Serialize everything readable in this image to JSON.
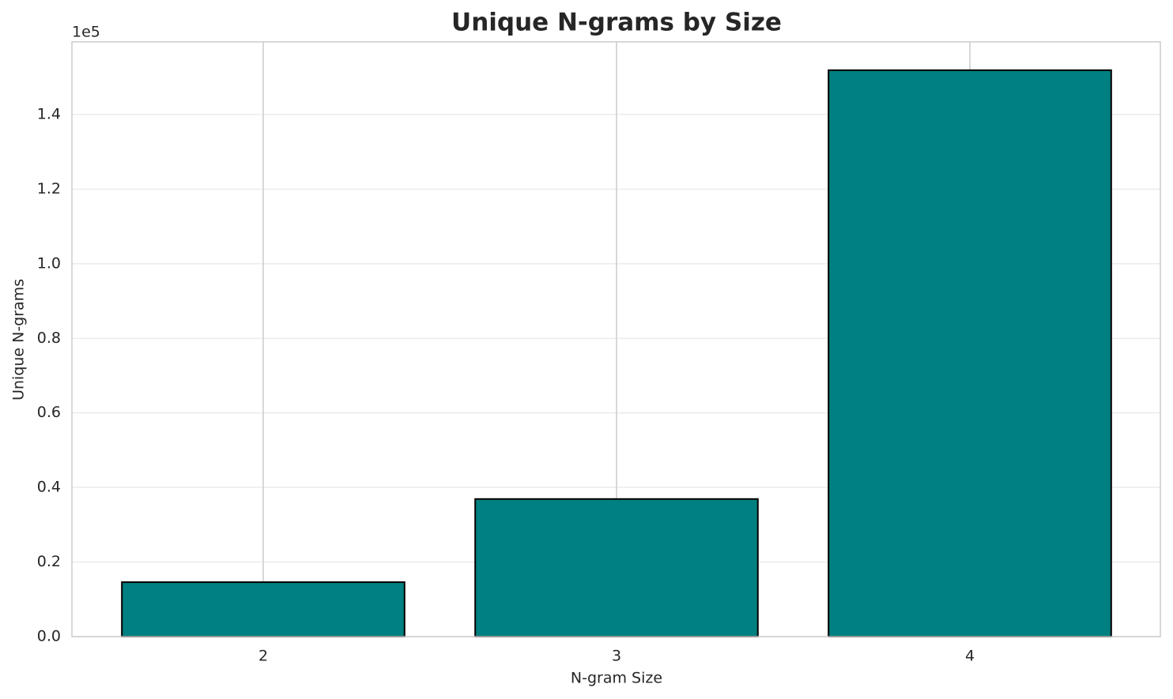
{
  "chart_data": {
    "type": "bar",
    "title": "Unique N-grams by Size",
    "x_label": "N-gram Size",
    "y_label": "Unique N-grams",
    "y_offset_label": "1e5",
    "categories": [
      "2",
      "3",
      "4"
    ],
    "values": [
      0.146,
      0.369,
      1.519
    ],
    "color": "#008080",
    "edge_color": "#000000",
    "ylim": [
      0,
      1.595
    ],
    "yticks": [
      {
        "value": 0,
        "label": "0.0"
      },
      0.2,
      0.4,
      0.6,
      0.8,
      {
        "value": 1,
        "label": "1.0"
      },
      1.2,
      1.4
    ],
    "grid": true
  }
}
